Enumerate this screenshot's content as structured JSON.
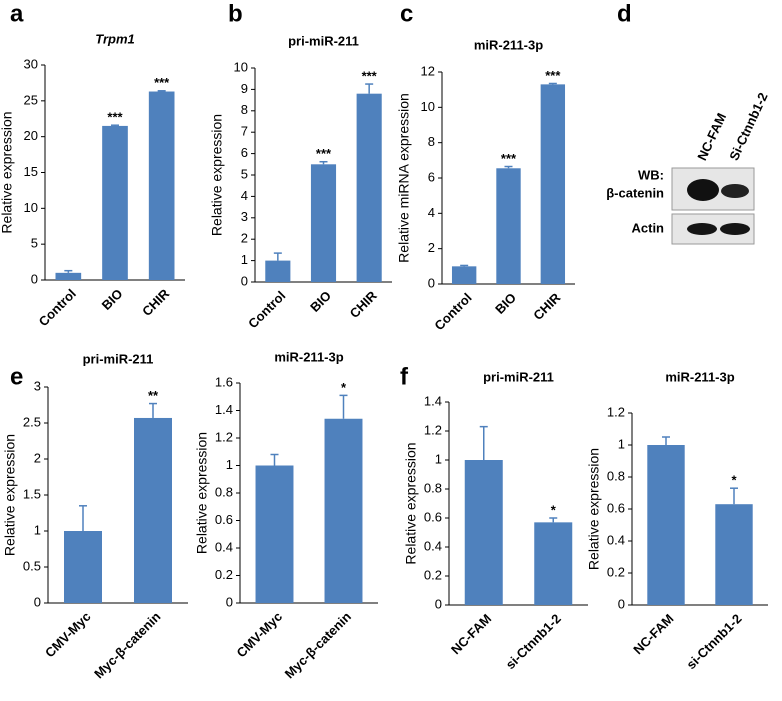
{
  "panel_labels": [
    "a",
    "b",
    "c",
    "d",
    "e",
    "f"
  ],
  "blot": {
    "lanes": [
      "NC-FAM",
      "Si-Ctnnb1-2"
    ],
    "probe_prefix": "WB:",
    "rows": [
      "β-catenin",
      "Actin"
    ]
  },
  "chart_data": [
    {
      "type": "bar",
      "title": "Trpm1",
      "y_label": "Relative expression",
      "categories": [
        "Control",
        "BIO",
        "CHIR"
      ],
      "values": [
        1,
        21.5,
        26.3
      ],
      "errors": [
        0.3,
        0.1,
        0.1
      ],
      "significance": [
        null,
        "***",
        "***"
      ],
      "color": "#4f81bd",
      "ylim": [
        0,
        30
      ],
      "yticks": [
        0,
        5,
        10,
        15,
        20,
        25,
        30
      ]
    },
    {
      "type": "bar",
      "title": "pri-miR-211",
      "y_label": "Relative expression",
      "categories": [
        "Control",
        "BIO",
        "CHIR"
      ],
      "values": [
        1,
        5.5,
        8.8
      ],
      "errors": [
        0.35,
        0.12,
        0.45
      ],
      "significance": [
        null,
        "***",
        "***"
      ],
      "color": "#4f81bd",
      "ylim": [
        0,
        10
      ],
      "yticks": [
        0,
        1,
        2,
        3,
        4,
        5,
        6,
        7,
        8,
        9,
        10
      ]
    },
    {
      "type": "bar",
      "title": "miR-211-3p",
      "y_label": "Relative miRNA expression",
      "categories": [
        "Control",
        "BIO",
        "CHIR"
      ],
      "values": [
        1,
        6.55,
        11.3
      ],
      "errors": [
        0.05,
        0.1,
        0.05
      ],
      "significance": [
        null,
        "***",
        "***"
      ],
      "color": "#4f81bd",
      "ylim": [
        0,
        12
      ],
      "yticks": [
        0,
        2,
        4,
        6,
        8,
        10,
        12
      ]
    },
    {
      "type": "bar",
      "title": "pri-miR-211",
      "y_label": "Relative expression",
      "categories": [
        "CMV-Myc",
        "Myc-β-catenin"
      ],
      "values": [
        1,
        2.57
      ],
      "errors": [
        0.35,
        0.2
      ],
      "significance": [
        null,
        "**"
      ],
      "color": "#4f81bd",
      "ylim": [
        0,
        3
      ],
      "yticks": [
        0,
        0.5,
        1,
        1.5,
        2,
        2.5,
        3
      ]
    },
    {
      "type": "bar",
      "title": "miR-211-3p",
      "y_label": "Relative expression",
      "categories": [
        "CMV-Myc",
        "Myc-β-catenin"
      ],
      "values": [
        1,
        1.34
      ],
      "errors": [
        0.08,
        0.17
      ],
      "significance": [
        null,
        "*"
      ],
      "color": "#4f81bd",
      "ylim": [
        0,
        1.6
      ],
      "yticks": [
        0,
        0.2,
        0.4,
        0.6,
        0.8,
        1,
        1.2,
        1.4,
        1.6
      ]
    },
    {
      "type": "bar",
      "title": "pri-miR-211",
      "y_label": "Relative expression",
      "categories": [
        "NC-FAM",
        "si-Ctnnb1-2"
      ],
      "values": [
        1,
        0.57
      ],
      "errors": [
        0.23,
        0.03
      ],
      "significance": [
        null,
        "*"
      ],
      "color": "#4f81bd",
      "ylim": [
        0,
        1.4
      ],
      "yticks": [
        0,
        0.2,
        0.4,
        0.6,
        0.8,
        1,
        1.2,
        1.4
      ]
    },
    {
      "type": "bar",
      "title": "miR-211-3p",
      "y_label": "Relative expression",
      "categories": [
        "NC-FAM",
        "si-Ctnnb1-2"
      ],
      "values": [
        1,
        0.63
      ],
      "errors": [
        0.05,
        0.1
      ],
      "significance": [
        null,
        "*"
      ],
      "color": "#4f81bd",
      "ylim": [
        0,
        1.2
      ],
      "yticks": [
        0,
        0.2,
        0.4,
        0.6,
        0.8,
        1,
        1.2
      ]
    }
  ]
}
